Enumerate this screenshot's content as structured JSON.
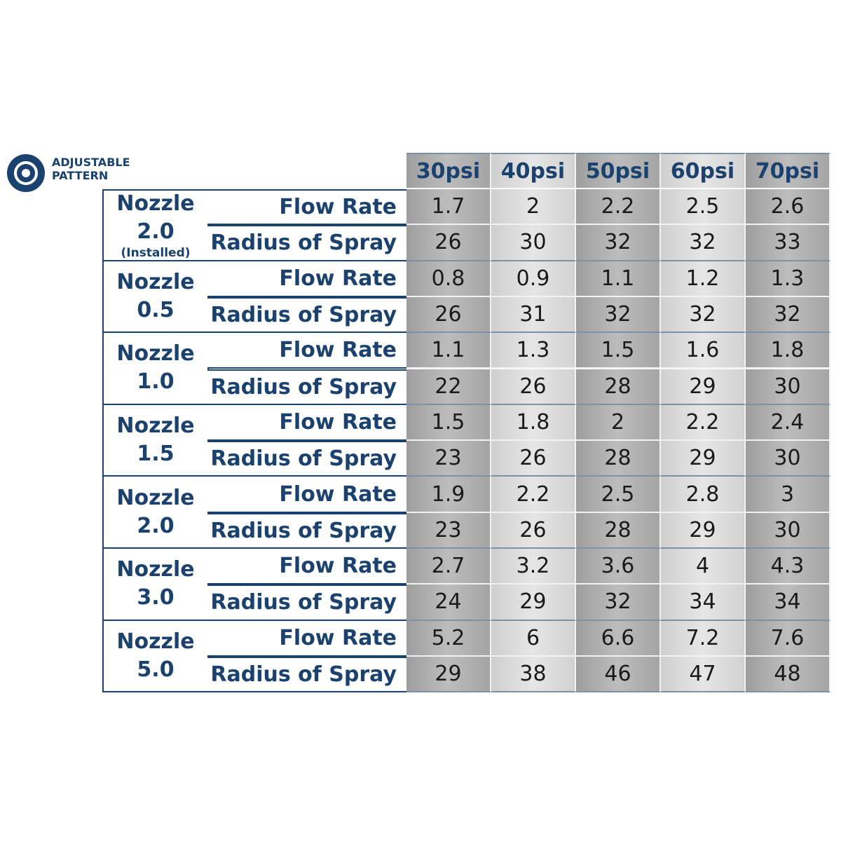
{
  "header": {
    "badge": [
      "ADJUSTABLE",
      "PATTERN"
    ]
  },
  "table": {
    "columns": [
      "30psi",
      "40psi",
      "50psi",
      "60psi",
      "70psi"
    ],
    "groups": [
      {
        "nozzle": "Nozzle",
        "size": "2.0",
        "note": "(Installed)",
        "rows": [
          {
            "label": "Flow Rate",
            "values": [
              1.7,
              2,
              2.2,
              2.5,
              2.6
            ]
          },
          {
            "label": "Radius of Spray",
            "values": [
              26,
              30,
              32,
              32,
              33
            ]
          }
        ]
      },
      {
        "nozzle": "Nozzle",
        "size": "0.5",
        "rows": [
          {
            "label": "Flow Rate",
            "values": [
              0.8,
              0.9,
              1.1,
              1.2,
              1.3
            ]
          },
          {
            "label": "Radius of Spray",
            "values": [
              26,
              31,
              32,
              32,
              32
            ]
          }
        ]
      },
      {
        "nozzle": "Nozzle",
        "size": "1.0",
        "rows": [
          {
            "label": "Flow Rate",
            "values": [
              1.1,
              1.3,
              1.5,
              1.6,
              1.8
            ]
          },
          {
            "label": "Radius of Spray",
            "values": [
              22,
              26,
              28,
              29,
              30
            ]
          }
        ]
      },
      {
        "nozzle": "Nozzle",
        "size": "1.5",
        "rows": [
          {
            "label": "Flow Rate",
            "values": [
              1.5,
              1.8,
              2,
              2.2,
              2.4
            ]
          },
          {
            "label": "Radius of Spray",
            "values": [
              23,
              26,
              28,
              29,
              30
            ]
          }
        ]
      },
      {
        "nozzle": "Nozzle",
        "size": "2.0",
        "rows": [
          {
            "label": "Flow Rate",
            "values": [
              1.9,
              2.2,
              2.5,
              2.8,
              3
            ]
          },
          {
            "label": "Radius of Spray",
            "values": [
              23,
              26,
              28,
              29,
              30
            ]
          }
        ]
      },
      {
        "nozzle": "Nozzle",
        "size": "3.0",
        "rows": [
          {
            "label": "Flow Rate",
            "values": [
              2.7,
              3.2,
              3.6,
              4,
              4.3
            ]
          },
          {
            "label": "Radius of Spray",
            "values": [
              24,
              29,
              32,
              34,
              34
            ]
          }
        ]
      },
      {
        "nozzle": "Nozzle",
        "size": "5.0",
        "rows": [
          {
            "label": "Flow Rate",
            "values": [
              5.2,
              6,
              6.6,
              7.2,
              7.6
            ]
          },
          {
            "label": "Radius of Spray",
            "values": [
              29,
              38,
              46,
              47,
              48
            ]
          }
        ]
      }
    ]
  }
}
